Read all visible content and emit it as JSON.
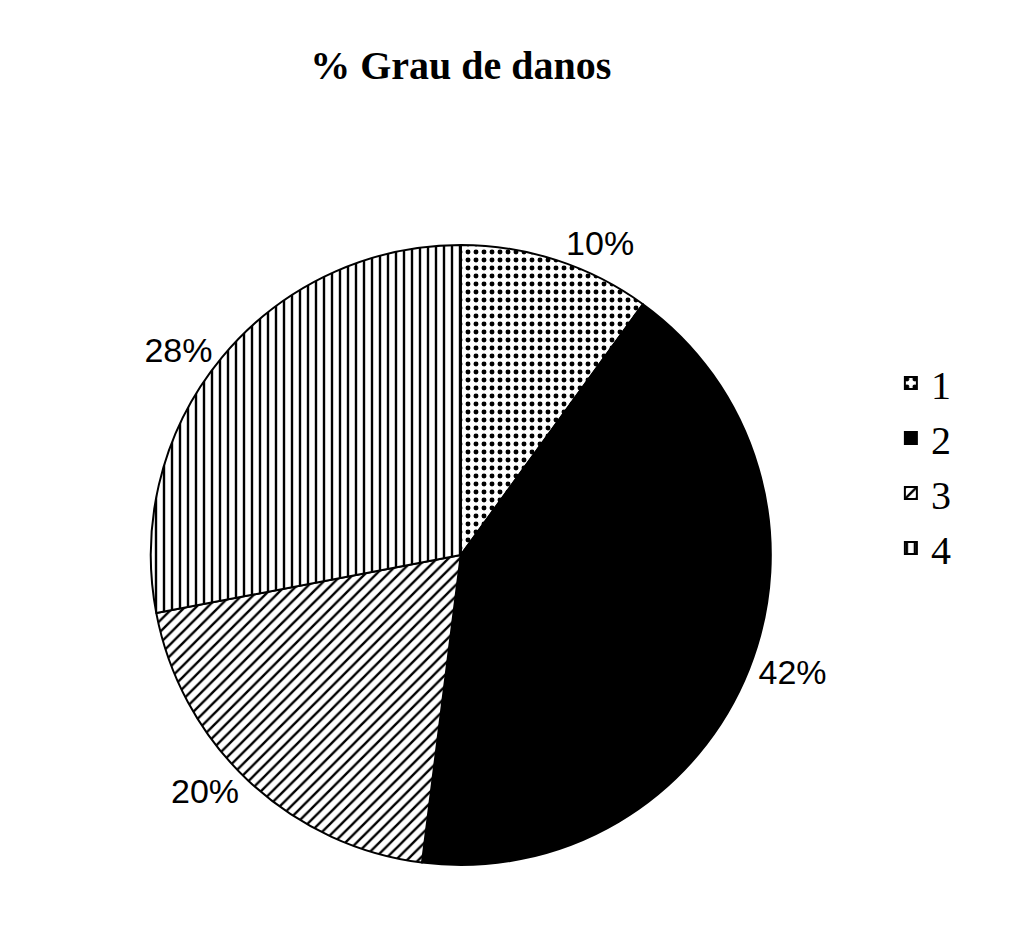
{
  "chart_data": {
    "type": "pie",
    "title": "% Grau de danos",
    "categories": [
      "1",
      "2",
      "3",
      "4"
    ],
    "values": [
      10,
      42,
      20,
      28
    ],
    "value_labels": [
      "10%",
      "42%",
      "20%",
      "28%"
    ],
    "colors": [
      "#ffffff",
      "#000000",
      "#ffffff",
      "#ffffff"
    ],
    "data_labels": true,
    "legend": "right"
  }
}
